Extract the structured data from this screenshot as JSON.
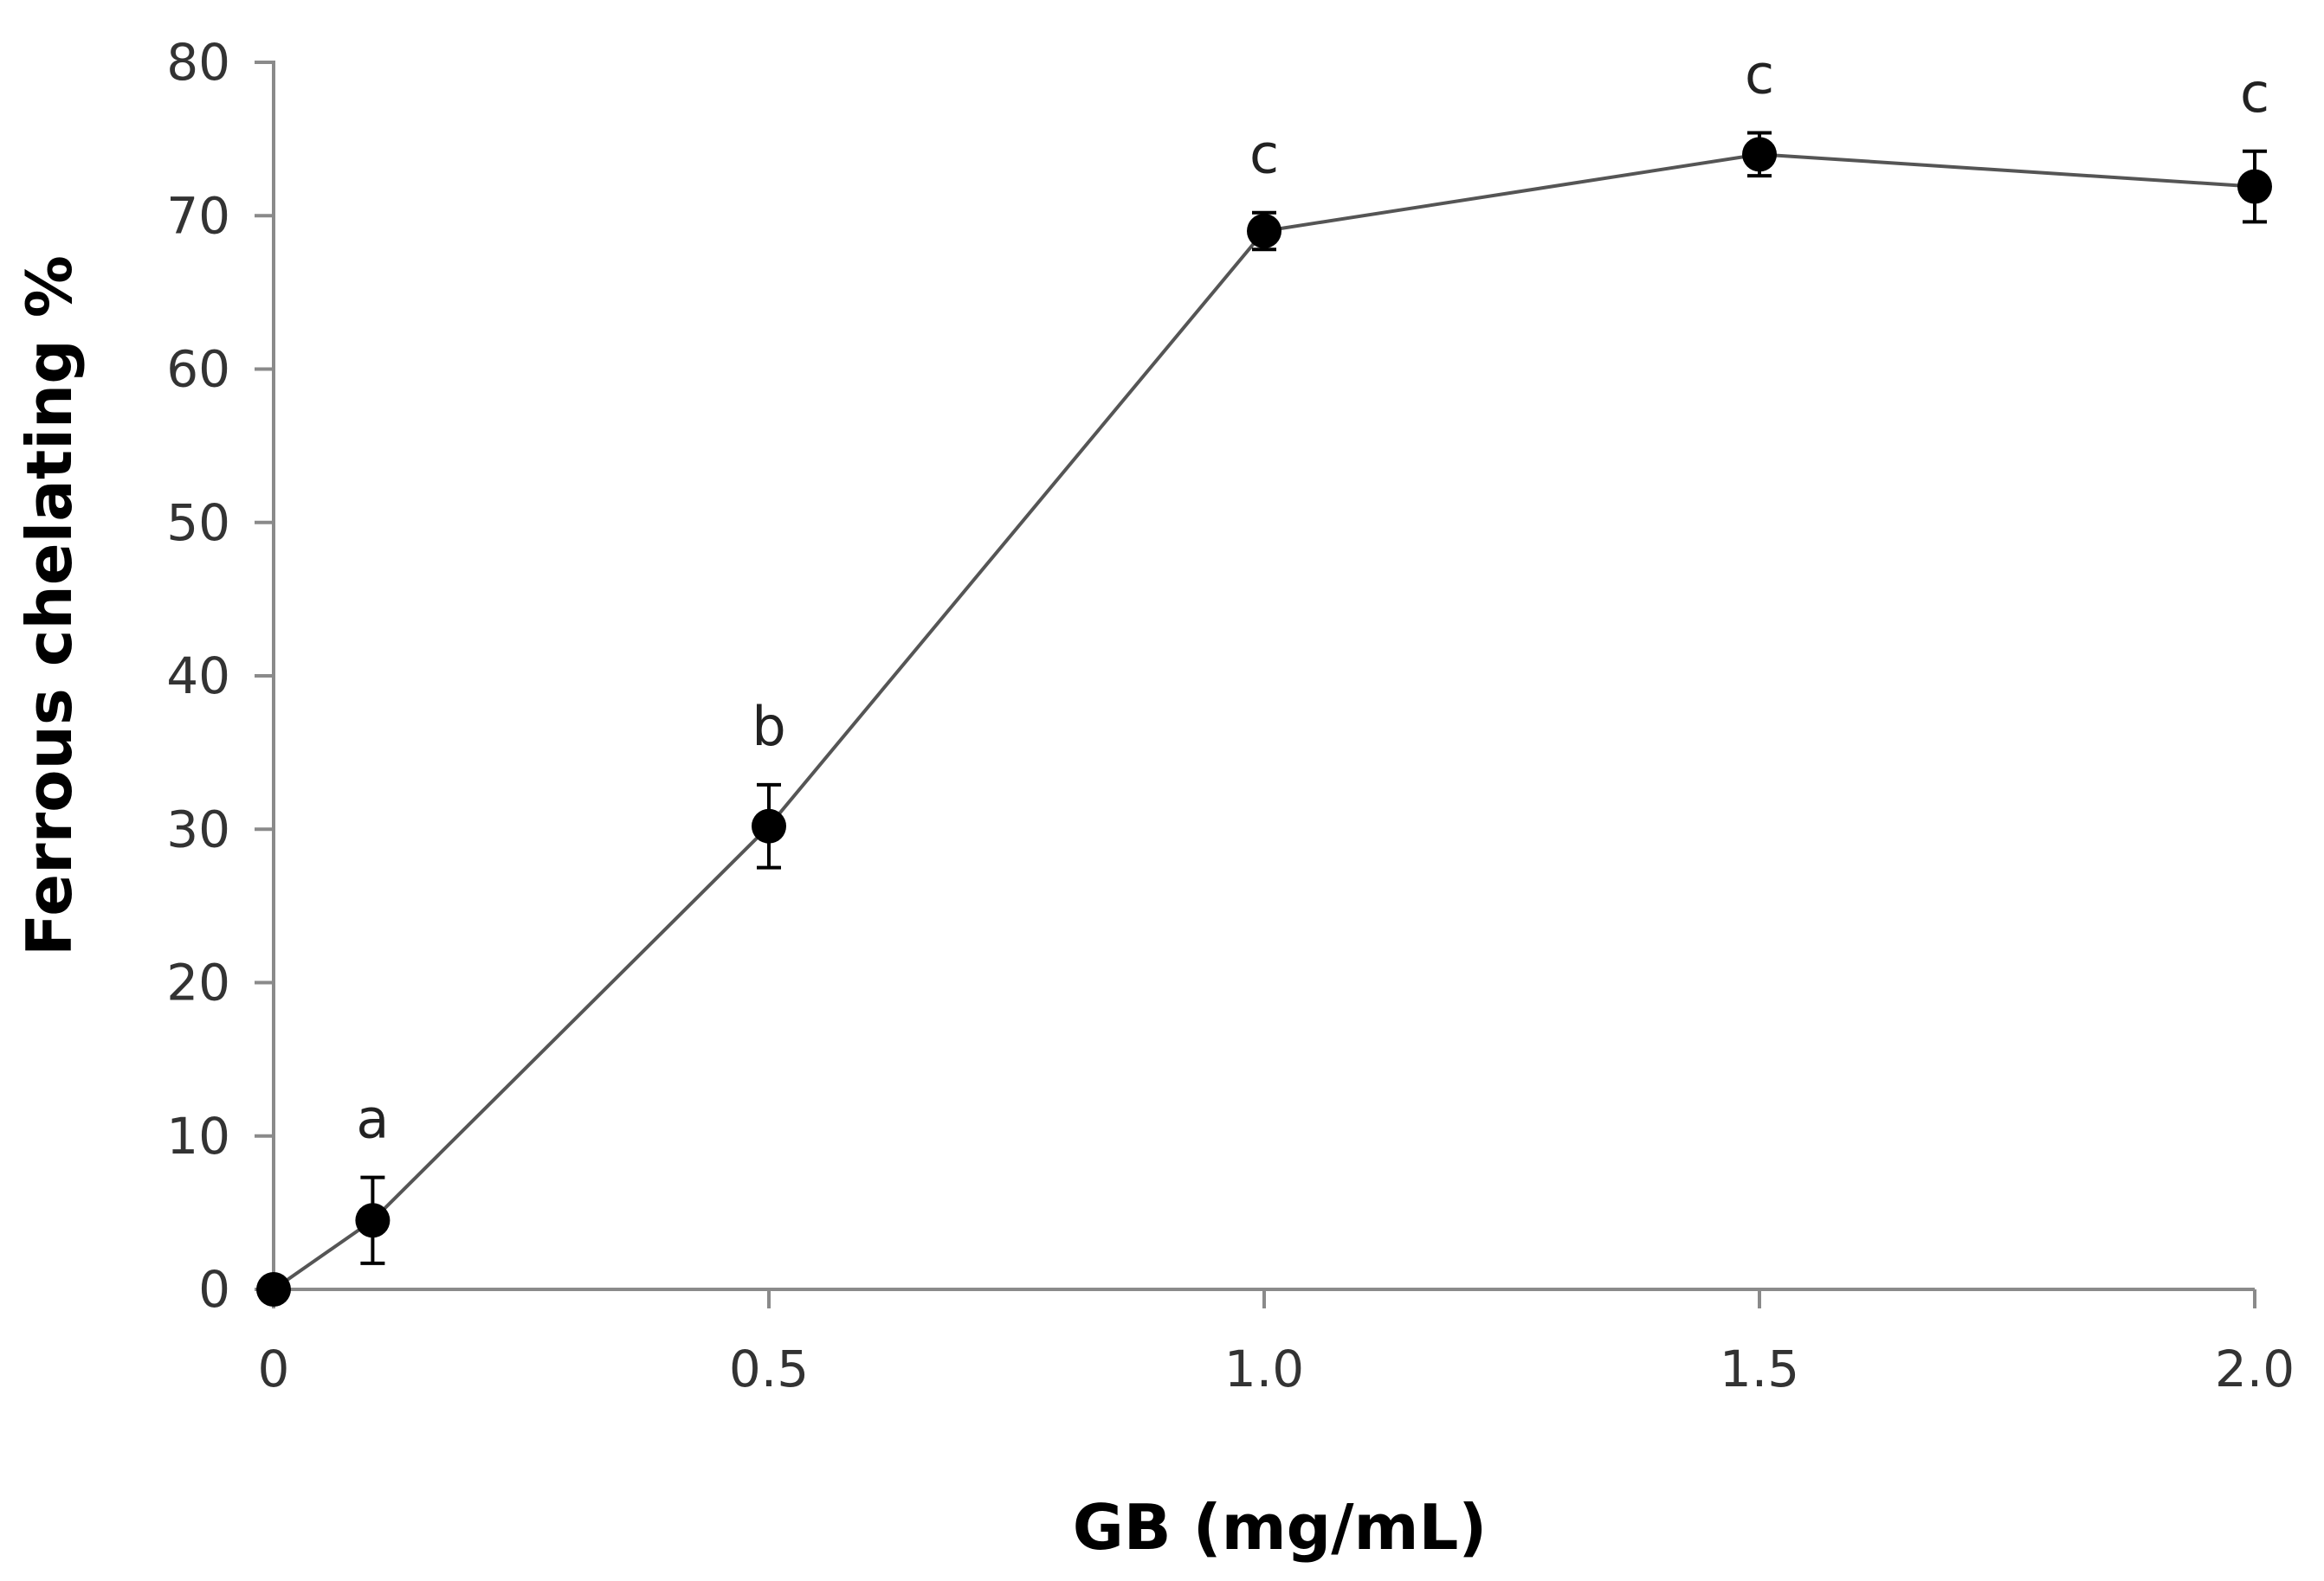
{
  "chart_data": {
    "type": "line",
    "xlabel": "GB (mg/mL)",
    "ylabel": "Ferrous chelating %",
    "xlim": [
      0,
      2.0
    ],
    "ylim": [
      0,
      80
    ],
    "x_ticks": [
      "0",
      "0.5",
      "1.0",
      "1.5",
      "2.0"
    ],
    "x_tick_values": [
      0,
      0.5,
      1.0,
      1.5,
      2.0
    ],
    "y_ticks": [
      "0",
      "10",
      "20",
      "30",
      "40",
      "50",
      "60",
      "70",
      "80"
    ],
    "y_tick_values": [
      0,
      10,
      20,
      30,
      40,
      50,
      60,
      70,
      80
    ],
    "grid": false,
    "legend": "none",
    "series": [
      {
        "x": [
          0,
          0.1,
          0.5,
          1.0,
          1.5,
          2.0
        ],
        "y": [
          0,
          4.5,
          30.2,
          69.0,
          74.0,
          71.9
        ],
        "error": [
          0,
          2.8,
          2.7,
          1.2,
          1.4,
          2.3
        ],
        "labels": [
          "",
          "a",
          "b",
          "c",
          "c",
          "c"
        ],
        "color": "#000000"
      }
    ]
  }
}
